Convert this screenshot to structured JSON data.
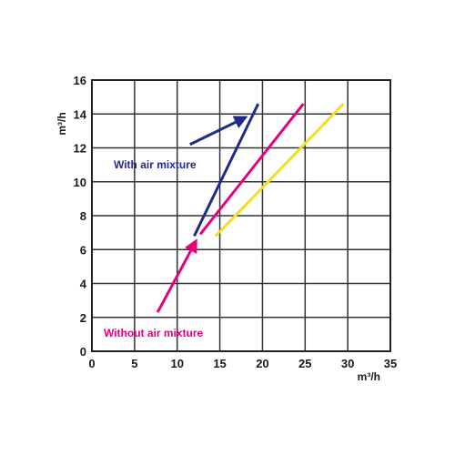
{
  "chart_data": {
    "type": "line",
    "xlabel": "m³/h",
    "ylabel": "m³/h",
    "xlim": [
      0,
      35
    ],
    "ylim": [
      0,
      16
    ],
    "xticks": [
      0,
      5,
      10,
      15,
      20,
      25,
      30,
      35
    ],
    "yticks": [
      0,
      2,
      4,
      6,
      8,
      10,
      12,
      14,
      16
    ],
    "xtick_labels": [
      "0",
      "5",
      "10",
      "15",
      "20",
      "25",
      "30",
      "35"
    ],
    "ytick_labels": [
      "0",
      "2",
      "4",
      "6",
      "8",
      "10",
      "12",
      "14",
      "16"
    ],
    "grid": true,
    "series": [
      {
        "color": "#1f2a8a",
        "x": [
          12.0,
          19.5
        ],
        "y": [
          6.8,
          14.6
        ]
      },
      {
        "color": "#e6007e",
        "x": [
          12.7,
          24.8
        ],
        "y": [
          6.9,
          14.6
        ]
      },
      {
        "color": "#f0e020",
        "x": [
          14.5,
          29.5
        ],
        "y": [
          6.8,
          14.6
        ]
      }
    ],
    "annotations": [
      {
        "text": "With air mixture",
        "color": "#1f2a8a",
        "arrow_from": [
          11.5,
          12.2
        ],
        "arrow_to": [
          18.0,
          13.8
        ]
      },
      {
        "text": "Without air mixture",
        "color": "#e6007e",
        "arrow_from": [
          7.7,
          2.3
        ],
        "arrow_to": [
          12.2,
          6.5
        ]
      }
    ]
  }
}
